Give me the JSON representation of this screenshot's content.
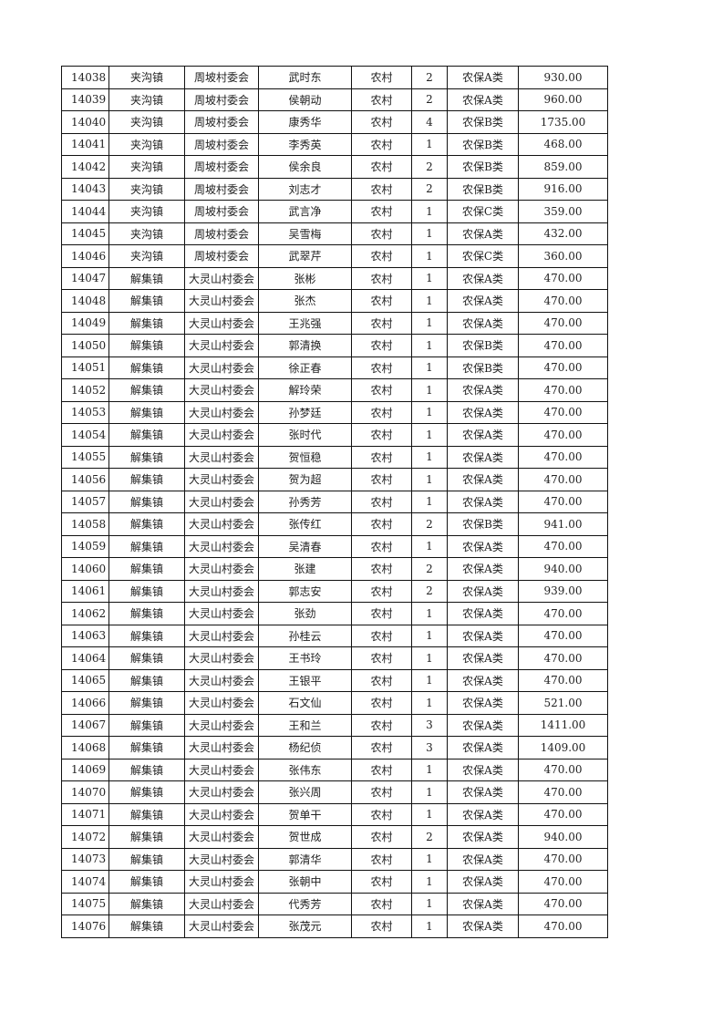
{
  "table": {
    "rows": [
      [
        "14038",
        "夹沟镇",
        "周坡村委会",
        "武时东",
        "农村",
        "2",
        "农保A类",
        "930.00"
      ],
      [
        "14039",
        "夹沟镇",
        "周坡村委会",
        "侯朝动",
        "农村",
        "2",
        "农保A类",
        "960.00"
      ],
      [
        "14040",
        "夹沟镇",
        "周坡村委会",
        "康秀华",
        "农村",
        "4",
        "农保B类",
        "1735.00"
      ],
      [
        "14041",
        "夹沟镇",
        "周坡村委会",
        "李秀英",
        "农村",
        "1",
        "农保B类",
        "468.00"
      ],
      [
        "14042",
        "夹沟镇",
        "周坡村委会",
        "侯余良",
        "农村",
        "2",
        "农保B类",
        "859.00"
      ],
      [
        "14043",
        "夹沟镇",
        "周坡村委会",
        "刘志才",
        "农村",
        "2",
        "农保B类",
        "916.00"
      ],
      [
        "14044",
        "夹沟镇",
        "周坡村委会",
        "武言净",
        "农村",
        "1",
        "农保C类",
        "359.00"
      ],
      [
        "14045",
        "夹沟镇",
        "周坡村委会",
        "吴雪梅",
        "农村",
        "1",
        "农保A类",
        "432.00"
      ],
      [
        "14046",
        "夹沟镇",
        "周坡村委会",
        "武翠芹",
        "农村",
        "1",
        "农保C类",
        "360.00"
      ],
      [
        "14047",
        "解集镇",
        "大灵山村委会",
        "张彬",
        "农村",
        "1",
        "农保A类",
        "470.00"
      ],
      [
        "14048",
        "解集镇",
        "大灵山村委会",
        "张杰",
        "农村",
        "1",
        "农保A类",
        "470.00"
      ],
      [
        "14049",
        "解集镇",
        "大灵山村委会",
        "王兆强",
        "农村",
        "1",
        "农保A类",
        "470.00"
      ],
      [
        "14050",
        "解集镇",
        "大灵山村委会",
        "郭清换",
        "农村",
        "1",
        "农保B类",
        "470.00"
      ],
      [
        "14051",
        "解集镇",
        "大灵山村委会",
        "徐正春",
        "农村",
        "1",
        "农保B类",
        "470.00"
      ],
      [
        "14052",
        "解集镇",
        "大灵山村委会",
        "解玲荣",
        "农村",
        "1",
        "农保A类",
        "470.00"
      ],
      [
        "14053",
        "解集镇",
        "大灵山村委会",
        "孙梦廷",
        "农村",
        "1",
        "农保A类",
        "470.00"
      ],
      [
        "14054",
        "解集镇",
        "大灵山村委会",
        "张时代",
        "农村",
        "1",
        "农保A类",
        "470.00"
      ],
      [
        "14055",
        "解集镇",
        "大灵山村委会",
        "贺恒稳",
        "农村",
        "1",
        "农保A类",
        "470.00"
      ],
      [
        "14056",
        "解集镇",
        "大灵山村委会",
        "贺为超",
        "农村",
        "1",
        "农保A类",
        "470.00"
      ],
      [
        "14057",
        "解集镇",
        "大灵山村委会",
        "孙秀芳",
        "农村",
        "1",
        "农保A类",
        "470.00"
      ],
      [
        "14058",
        "解集镇",
        "大灵山村委会",
        "张传红",
        "农村",
        "2",
        "农保B类",
        "941.00"
      ],
      [
        "14059",
        "解集镇",
        "大灵山村委会",
        "吴清春",
        "农村",
        "1",
        "农保A类",
        "470.00"
      ],
      [
        "14060",
        "解集镇",
        "大灵山村委会",
        "张建",
        "农村",
        "2",
        "农保A类",
        "940.00"
      ],
      [
        "14061",
        "解集镇",
        "大灵山村委会",
        "郭志安",
        "农村",
        "2",
        "农保A类",
        "939.00"
      ],
      [
        "14062",
        "解集镇",
        "大灵山村委会",
        "张劲",
        "农村",
        "1",
        "农保A类",
        "470.00"
      ],
      [
        "14063",
        "解集镇",
        "大灵山村委会",
        "孙桂云",
        "农村",
        "1",
        "农保A类",
        "470.00"
      ],
      [
        "14064",
        "解集镇",
        "大灵山村委会",
        "王书玲",
        "农村",
        "1",
        "农保A类",
        "470.00"
      ],
      [
        "14065",
        "解集镇",
        "大灵山村委会",
        "王银平",
        "农村",
        "1",
        "农保A类",
        "470.00"
      ],
      [
        "14066",
        "解集镇",
        "大灵山村委会",
        "石文仙",
        "农村",
        "1",
        "农保A类",
        "521.00"
      ],
      [
        "14067",
        "解集镇",
        "大灵山村委会",
        "王和兰",
        "农村",
        "3",
        "农保A类",
        "1411.00"
      ],
      [
        "14068",
        "解集镇",
        "大灵山村委会",
        "杨纪侦",
        "农村",
        "3",
        "农保A类",
        "1409.00"
      ],
      [
        "14069",
        "解集镇",
        "大灵山村委会",
        "张伟东",
        "农村",
        "1",
        "农保A类",
        "470.00"
      ],
      [
        "14070",
        "解集镇",
        "大灵山村委会",
        "张兴周",
        "农村",
        "1",
        "农保A类",
        "470.00"
      ],
      [
        "14071",
        "解集镇",
        "大灵山村委会",
        "贺单干",
        "农村",
        "1",
        "农保A类",
        "470.00"
      ],
      [
        "14072",
        "解集镇",
        "大灵山村委会",
        "贺世成",
        "农村",
        "2",
        "农保A类",
        "940.00"
      ],
      [
        "14073",
        "解集镇",
        "大灵山村委会",
        "郭清华",
        "农村",
        "1",
        "农保A类",
        "470.00"
      ],
      [
        "14074",
        "解集镇",
        "大灵山村委会",
        "张朝中",
        "农村",
        "1",
        "农保A类",
        "470.00"
      ],
      [
        "14075",
        "解集镇",
        "大灵山村委会",
        "代秀芳",
        "农村",
        "1",
        "农保A类",
        "470.00"
      ],
      [
        "14076",
        "解集镇",
        "大灵山村委会",
        "张茂元",
        "农村",
        "1",
        "农保A类",
        "470.00"
      ]
    ]
  }
}
